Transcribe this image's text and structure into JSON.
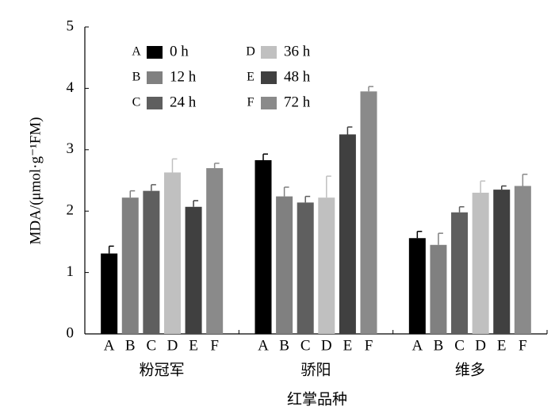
{
  "chart_data": {
    "type": "bar",
    "categories": [
      "粉冠军",
      "骄阳",
      "维多"
    ],
    "xlabel": "红掌品种",
    "ylabel": "MDA/(μmol·g⁻¹FM)",
    "ylim": [
      0,
      5
    ],
    "yticks": [
      0,
      1,
      2,
      3,
      4,
      5
    ],
    "series": [
      {
        "letter": "A",
        "name": "0 h",
        "color": "#000000",
        "values": [
          1.31,
          2.83,
          1.56
        ],
        "errors": [
          0.12,
          0.1,
          0.11
        ]
      },
      {
        "letter": "B",
        "name": "12 h",
        "color": "#808080",
        "values": [
          2.22,
          2.24,
          1.45
        ],
        "errors": [
          0.11,
          0.15,
          0.19
        ]
      },
      {
        "letter": "C",
        "name": "24 h",
        "color": "#5f5f5f",
        "values": [
          2.33,
          2.14,
          1.98
        ],
        "errors": [
          0.1,
          0.1,
          0.09
        ]
      },
      {
        "letter": "D",
        "name": "36 h",
        "color": "#c0c0c0",
        "values": [
          2.63,
          2.22,
          2.3
        ],
        "errors": [
          0.22,
          0.35,
          0.19
        ]
      },
      {
        "letter": "E",
        "name": "48 h",
        "color": "#404040",
        "values": [
          2.07,
          3.25,
          2.35
        ],
        "errors": [
          0.1,
          0.12,
          0.06
        ]
      },
      {
        "letter": "F",
        "name": "72 h",
        "color": "#8a8a8a",
        "values": [
          2.7,
          3.95,
          2.41
        ],
        "errors": [
          0.08,
          0.08,
          0.19
        ]
      }
    ]
  }
}
